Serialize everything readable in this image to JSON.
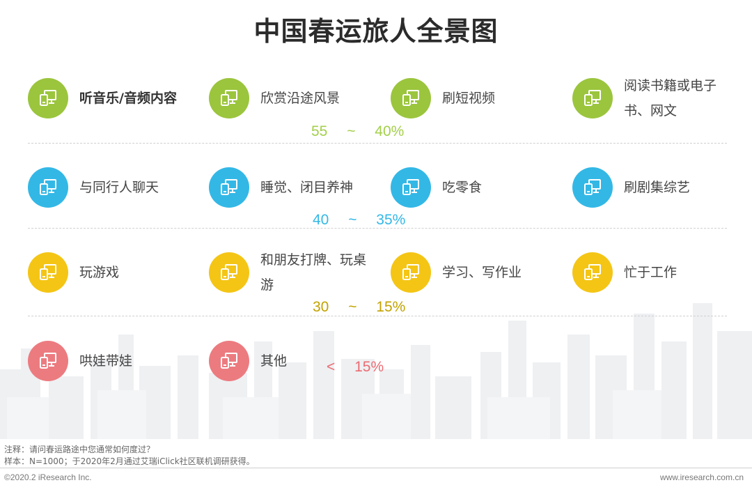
{
  "title": "中国春运旅人全景图",
  "colors": {
    "green": "#9bc53d",
    "blue": "#33b8e6",
    "yellow": "#f4c515",
    "red": "#ec7b80"
  },
  "icon": "device-icon",
  "tiers": [
    {
      "range_text": "55 ~ 40%",
      "range_color": "#a3cf4a",
      "items": [
        {
          "label": "听音乐/音频内容"
        },
        {
          "label": "欣赏沿途风景"
        },
        {
          "label": "刷短视频"
        },
        {
          "label": "阅读书籍或电子书、网文"
        }
      ]
    },
    {
      "range_text": "40 ~ 35%",
      "range_color": "#33b8e6",
      "items": [
        {
          "label": "与同行人聊天"
        },
        {
          "label": "睡觉、闭目养神"
        },
        {
          "label": "吃零食"
        },
        {
          "label": "刷剧集综艺"
        }
      ]
    },
    {
      "range_text": "30 ~ 15%",
      "range_color": "#c2a200",
      "items": [
        {
          "label": "玩游戏"
        },
        {
          "label": "和朋友打牌、玩桌游"
        },
        {
          "label": "学习、写作业"
        },
        {
          "label": "忙于工作"
        }
      ]
    },
    {
      "range_text": "< 15%",
      "range_color": "#ec6b72",
      "items": [
        {
          "label": "哄娃带娃"
        },
        {
          "label": "其他"
        }
      ]
    }
  ],
  "notes": {
    "note": "注释：请问春运路途中您通常如何度过？",
    "sample": "样本：N=1000；于2020年2月通过艾瑞iClick社区联机调研获得。"
  },
  "footer": {
    "copyright": "©2020.2 iResearch Inc.",
    "website": "www.iresearch.com.cn"
  }
}
